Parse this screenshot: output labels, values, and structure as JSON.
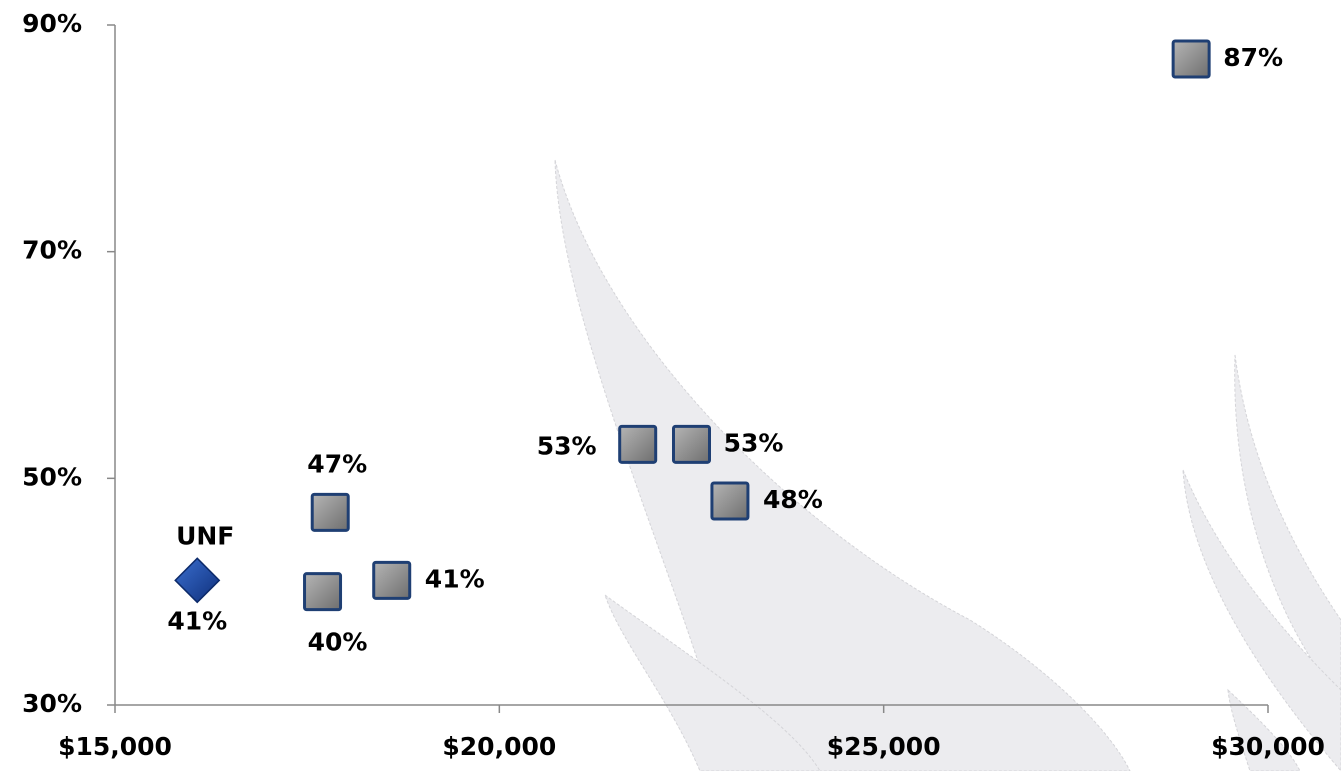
{
  "chart_data": {
    "type": "scatter",
    "series": [
      {
        "name": "UNF",
        "color": "#1f4ea3",
        "marker": "diamond",
        "x": [
          16070
        ],
        "values": [
          41
        ],
        "value_labels": [
          "41%"
        ]
      },
      {
        "color": "#8c8c8c",
        "marker": "square",
        "x": [
          17800,
          17700,
          18600,
          21800,
          22500,
          23000,
          29000
        ],
        "values": [
          47,
          40,
          41,
          53,
          53,
          48,
          87
        ],
        "value_labels": [
          "47%",
          "40%",
          "41%",
          "53%",
          "53%",
          "48%",
          "87%"
        ]
      }
    ],
    "xlim": [
      15000,
      30000
    ],
    "xticks": [
      {
        "value": 15000,
        "label": "$15,000"
      },
      {
        "value": 20000,
        "label": "$20,000"
      },
      {
        "value": 25000,
        "label": "$25,000"
      },
      {
        "value": 30000,
        "label": "$30,000"
      }
    ],
    "ylim": [
      30,
      90
    ],
    "yticks": [
      {
        "value": 30,
        "label": "30%"
      },
      {
        "value": 50,
        "label": "50%"
      },
      {
        "value": 70,
        "label": "70%"
      },
      {
        "value": 90,
        "label": "90%"
      }
    ]
  }
}
